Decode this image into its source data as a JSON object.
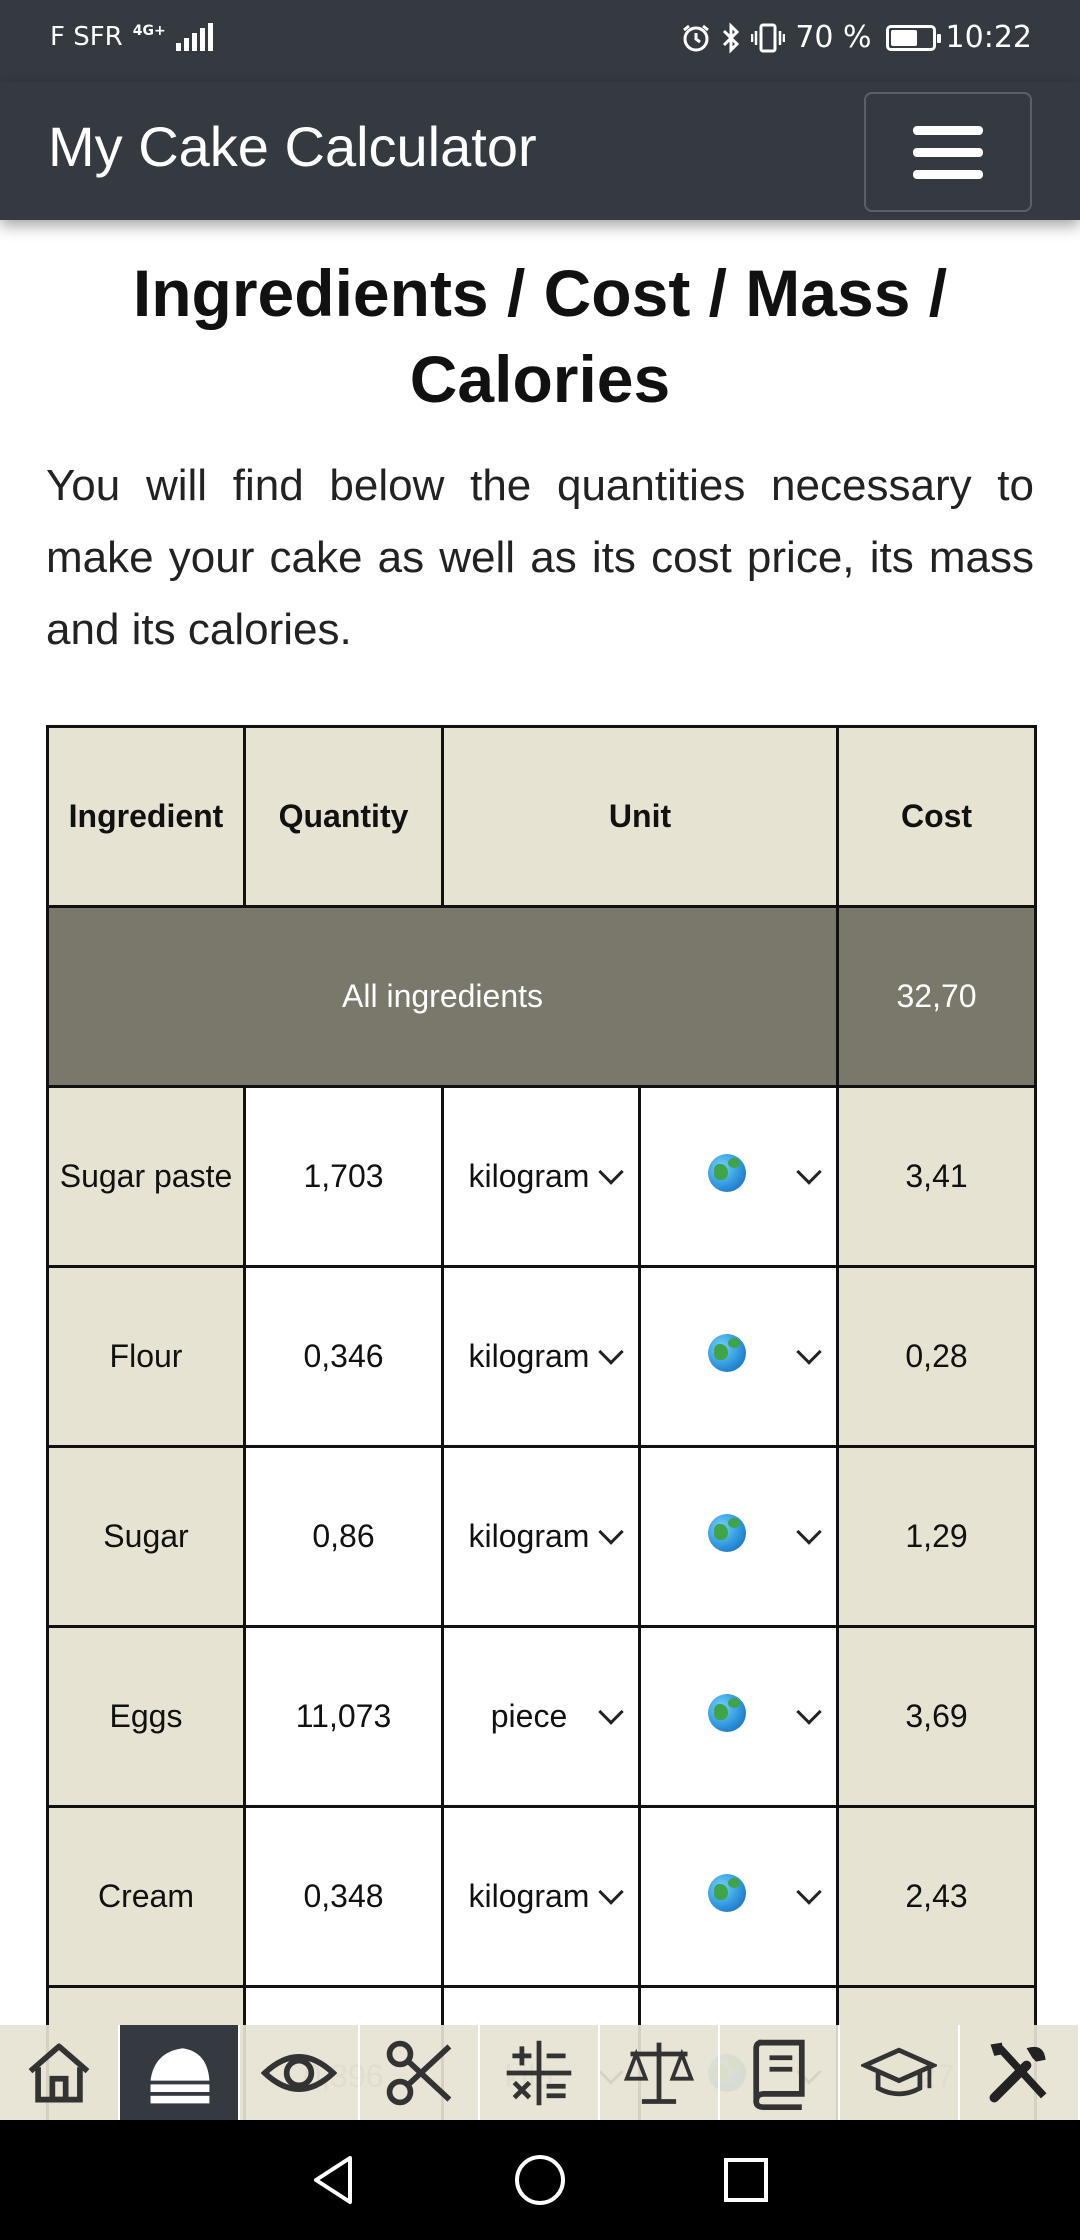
{
  "status_bar": {
    "carrier": "F SFR",
    "network": "4G+",
    "battery_percent": "70 %",
    "battery_level": 0.7,
    "time": "10:22",
    "icons": [
      "alarm-icon",
      "bluetooth-icon",
      "vibrate-icon",
      "battery-icon",
      "signal-icon"
    ]
  },
  "app_bar": {
    "title": "My Cake Calculator",
    "menu_icon": "hamburger-menu-icon"
  },
  "page": {
    "title": "Ingredients / Cost / Mass / Calories",
    "intro": "You will find below the quantities necessary to make your cake as well as its cost price, its mass and its calories."
  },
  "table": {
    "headers": {
      "ingredient": "Ingredient",
      "quantity": "Quantity",
      "unit": "Unit",
      "cost": "Cost"
    },
    "total": {
      "label": "All ingredients",
      "cost": "32,70"
    },
    "rows": [
      {
        "ingredient": "Sugar paste",
        "quantity": "1,703",
        "unit": "kilogram",
        "currency_icon": "globe-icon",
        "cost": "3,41"
      },
      {
        "ingredient": "Flour",
        "quantity": "0,346",
        "unit": "kilogram",
        "currency_icon": "globe-icon",
        "cost": "0,28"
      },
      {
        "ingredient": "Sugar",
        "quantity": "0,86",
        "unit": "kilogram",
        "currency_icon": "globe-icon",
        "cost": "1,29"
      },
      {
        "ingredient": "Eggs",
        "quantity": "11,073",
        "unit": "piece",
        "currency_icon": "globe-icon",
        "cost": "3,69"
      },
      {
        "ingredient": "Cream",
        "quantity": "0,348",
        "unit": "kilogram",
        "currency_icon": "globe-icon",
        "cost": "2,43"
      }
    ],
    "partial_row": {
      "ingredient": "Ino",
      "quantity": "0,396",
      "unit": "kilo",
      "cost": "27"
    }
  },
  "toolbar": {
    "items": [
      {
        "icon": "home-icon",
        "active": false
      },
      {
        "icon": "cake-icon",
        "active": true
      },
      {
        "icon": "eye-icon",
        "active": false
      },
      {
        "icon": "scissors-icon",
        "active": false
      },
      {
        "icon": "calculator-icon",
        "active": false
      },
      {
        "icon": "scale-icon",
        "active": false
      },
      {
        "icon": "book-icon",
        "active": false
      },
      {
        "icon": "graduation-cap-icon",
        "active": false
      },
      {
        "icon": "tools-icon",
        "active": false
      }
    ]
  },
  "nav_bar": {
    "icons": [
      "back-icon",
      "home-circle-icon",
      "recents-icon"
    ]
  }
}
